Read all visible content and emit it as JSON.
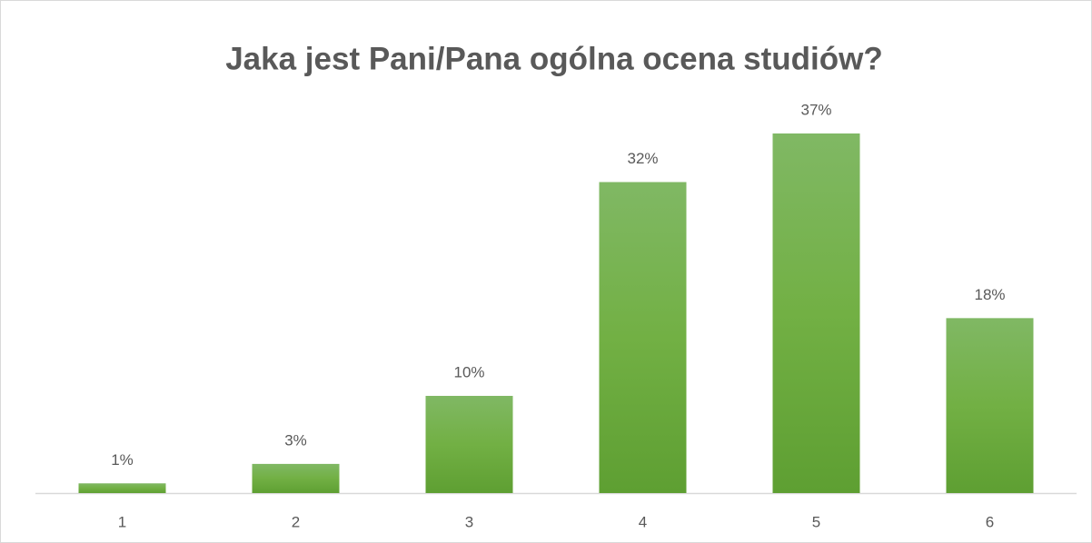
{
  "chart_data": {
    "type": "bar",
    "title": "Jaka jest Pani/Pana ogólna ocena studiów?",
    "categories": [
      "1",
      "2",
      "3",
      "4",
      "5",
      "6"
    ],
    "values": [
      1,
      3,
      10,
      32,
      37,
      18
    ],
    "value_labels": [
      "1%",
      "3%",
      "10%",
      "32%",
      "37%",
      "18%"
    ],
    "color": "#70ad47"
  }
}
